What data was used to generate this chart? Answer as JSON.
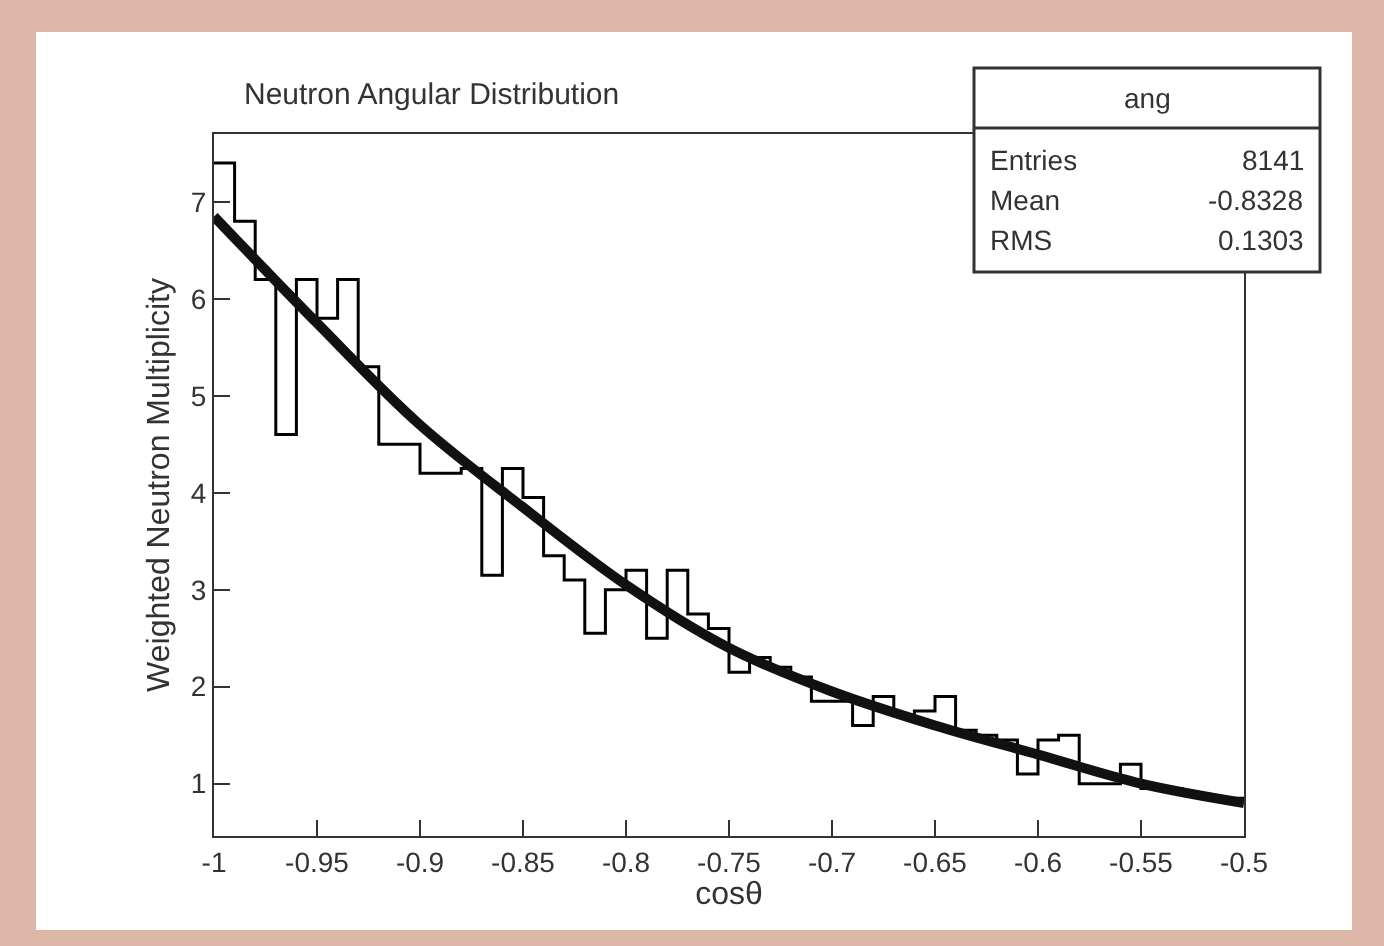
{
  "chart_data": {
    "type": "histogram",
    "title": "Neutron Angular Distribution",
    "xlabel": "cosθ",
    "ylabel": "Weighted Neutron Multiplicity",
    "bins": [
      -1.0,
      -0.99,
      -0.98,
      -0.97,
      -0.96,
      -0.95,
      -0.94,
      -0.93,
      -0.92,
      -0.91,
      -0.9,
      -0.89,
      -0.88,
      -0.87,
      -0.86,
      -0.85,
      -0.84,
      -0.83,
      -0.82,
      -0.81,
      -0.8,
      -0.79,
      -0.78,
      -0.77,
      -0.76,
      -0.75,
      -0.74,
      -0.73,
      -0.72,
      -0.71,
      -0.7,
      -0.69,
      -0.68,
      -0.67,
      -0.66,
      -0.65,
      -0.64,
      -0.63,
      -0.62,
      -0.61,
      -0.6,
      -0.59,
      -0.58,
      -0.57,
      -0.56,
      -0.55,
      -0.54,
      -0.53,
      -0.52,
      -0.51,
      -0.5
    ],
    "values": [
      7.4,
      6.8,
      6.2,
      4.6,
      6.2,
      5.8,
      6.2,
      5.3,
      4.5,
      4.5,
      4.2,
      4.2,
      4.25,
      3.15,
      4.25,
      3.95,
      3.35,
      3.1,
      2.55,
      3.0,
      3.2,
      2.5,
      3.2,
      2.75,
      2.6,
      2.15,
      2.3,
      2.2,
      2.1,
      1.85,
      1.85,
      1.6,
      1.9,
      1.7,
      1.75,
      1.9,
      1.55,
      1.5,
      1.45,
      1.1,
      1.45,
      1.5,
      1.0,
      1.0,
      1.2,
      0.95,
      0.95,
      0.9,
      0.85,
      0.85
    ],
    "color": "#000000",
    "series": [
      {
        "type": "line",
        "color": "#111111",
        "x": [
          -1.0,
          -0.95,
          -0.9,
          -0.85,
          -0.8,
          -0.75,
          -0.7,
          -0.65,
          -0.6,
          -0.55,
          -0.5
        ],
        "values": [
          6.85,
          5.75,
          4.7,
          3.85,
          3.05,
          2.4,
          1.95,
          1.6,
          1.3,
          1.0,
          0.8
        ]
      }
    ],
    "xlim": [
      -1.0,
      -0.5
    ],
    "xticks": [
      {
        "value": -1.0,
        "label": "-1"
      },
      -0.95,
      -0.9,
      -0.85,
      -0.8,
      -0.75,
      -0.7,
      -0.65,
      -0.6,
      -0.55,
      -0.5
    ],
    "ylim": [
      0.46,
      7.7
    ],
    "yticks": [
      1,
      2,
      3,
      4,
      5,
      6,
      7
    ],
    "annotations": [
      "ang",
      "Entries",
      "8141",
      "Mean",
      "-0.8328",
      "RMS",
      "0.1303"
    ]
  }
}
